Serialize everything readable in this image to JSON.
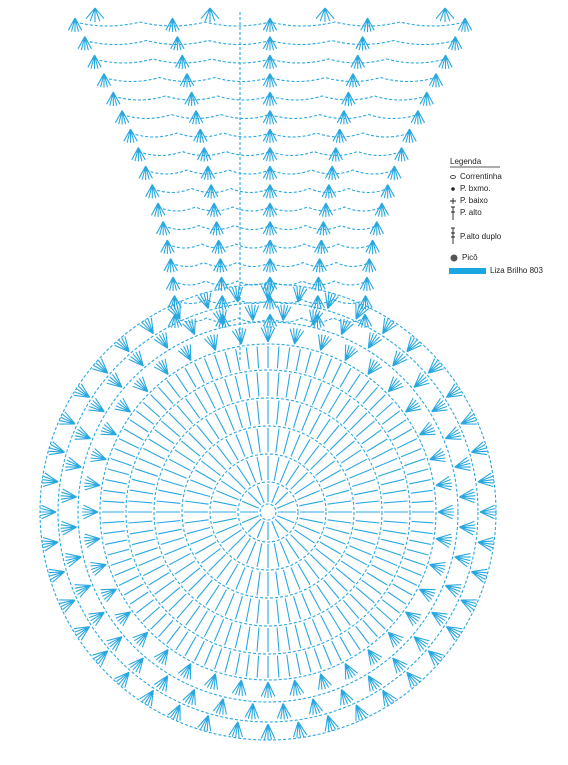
{
  "legend": {
    "title": "Legenda",
    "items": [
      "Correntinha",
      "P. bxmo.",
      "P. baixo",
      "P. alto",
      "P.alto duplo",
      "Picô"
    ],
    "yarn": "Liza Brilho 803"
  }
}
